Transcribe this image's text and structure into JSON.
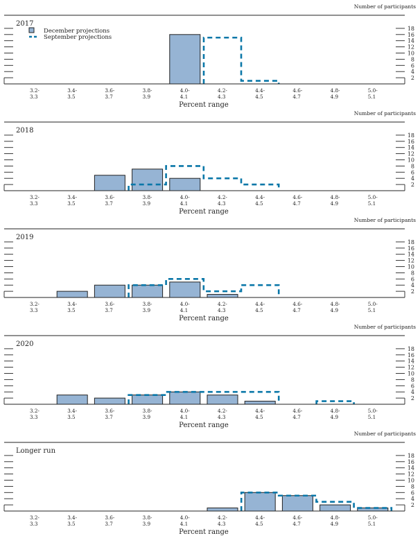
{
  "chart_data": {
    "type": "bar",
    "title": "",
    "xlabel": "Percent range",
    "ylabel": "Number of participants",
    "ylim": [
      0,
      19
    ],
    "y_ticks": [
      2,
      4,
      6,
      8,
      10,
      12,
      14,
      16,
      18
    ],
    "categories": [
      "3.2-3.3",
      "3.4-3.5",
      "3.6-3.7",
      "3.8-3.9",
      "4.0-4.1",
      "4.2-4.3",
      "4.4-4.5",
      "4.6-4.7",
      "4.8-4.9",
      "5.0-5.1"
    ],
    "category_labels": [
      [
        "3.2-",
        "3.3"
      ],
      [
        "3.4-",
        "3.5"
      ],
      [
        "3.6-",
        "3.7"
      ],
      [
        "3.8-",
        "3.9"
      ],
      [
        "4.0-",
        "4.1"
      ],
      [
        "4.2-",
        "4.3"
      ],
      [
        "4.4-",
        "4.5"
      ],
      [
        "4.6-",
        "4.7"
      ],
      [
        "4.8-",
        "4.9"
      ],
      [
        "5.0-",
        "5.1"
      ]
    ],
    "legend": {
      "placement": "top-left",
      "entries": [
        {
          "name": "December projections",
          "style": "filled-bar"
        },
        {
          "name": "September projections",
          "style": "dashed-outline"
        }
      ]
    },
    "colors": {
      "december_fill": "#96b4d4",
      "december_stroke": "#222222",
      "september_stroke": "#0a77a8"
    },
    "panels": [
      {
        "title": "2017",
        "series": [
          {
            "name": "December projections",
            "values": [
              0,
              0,
              0,
              0,
              16,
              0,
              0,
              0,
              0,
              0
            ]
          },
          {
            "name": "September projections",
            "values": [
              0,
              0,
              0,
              0,
              0,
              15,
              1,
              0,
              0,
              0
            ]
          }
        ]
      },
      {
        "title": "2018",
        "series": [
          {
            "name": "December projections",
            "values": [
              0,
              0,
              5,
              7,
              4,
              0,
              0,
              0,
              0,
              0
            ]
          },
          {
            "name": "September projections",
            "values": [
              0,
              0,
              0,
              2,
              8,
              4,
              2,
              0,
              0,
              0
            ]
          }
        ]
      },
      {
        "title": "2019",
        "series": [
          {
            "name": "December projections",
            "values": [
              0,
              2,
              4,
              4,
              5,
              1,
              0,
              0,
              0,
              0
            ]
          },
          {
            "name": "September projections",
            "values": [
              0,
              0,
              0,
              4,
              6,
              2,
              4,
              0,
              0,
              0
            ]
          }
        ]
      },
      {
        "title": "2020",
        "series": [
          {
            "name": "December projections",
            "values": [
              0,
              3,
              2,
              3,
              4,
              3,
              1,
              0,
              0,
              0
            ]
          },
          {
            "name": "September projections",
            "values": [
              0,
              0,
              0,
              3,
              4,
              4,
              4,
              0,
              1,
              0
            ]
          }
        ]
      },
      {
        "title": "Longer run",
        "series": [
          {
            "name": "December projections",
            "values": [
              0,
              0,
              0,
              0,
              0,
              1,
              6,
              5,
              2,
              1
            ]
          },
          {
            "name": "September projections",
            "values": [
              0,
              0,
              0,
              0,
              0,
              0,
              6,
              5,
              3,
              1
            ]
          }
        ]
      }
    ]
  }
}
